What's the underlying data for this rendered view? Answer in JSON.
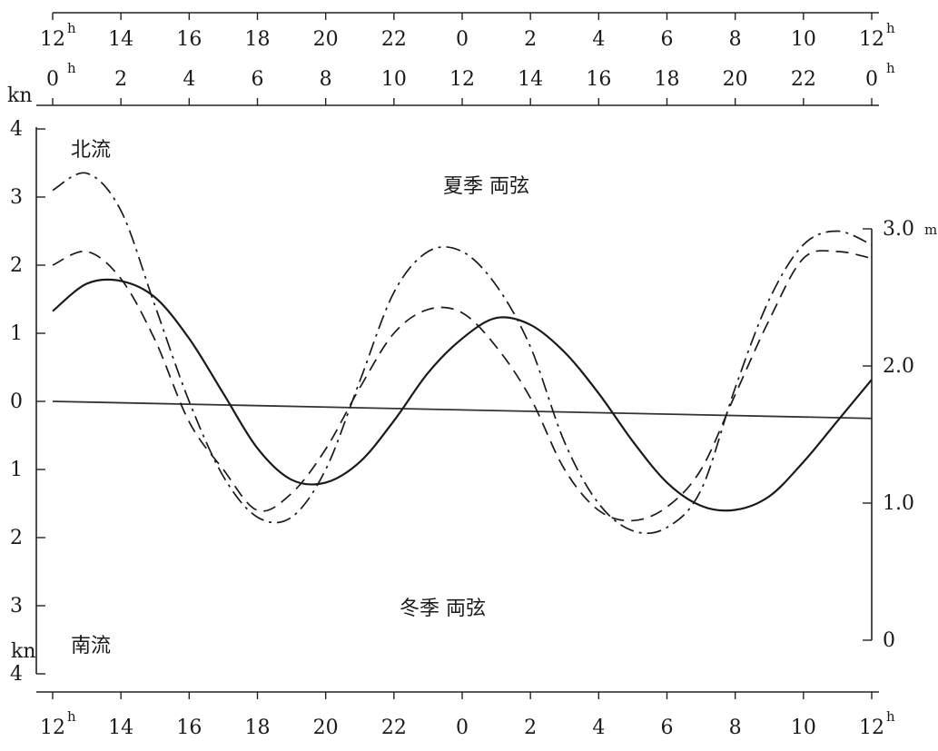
{
  "chart_data": {
    "type": "line",
    "x_label_unit": "h",
    "left_unit": "kn",
    "right_unit": "m",
    "time_axis_top": [
      "12",
      "14",
      "16",
      "18",
      "20",
      "22",
      "0",
      "2",
      "4",
      "6",
      "8",
      "10",
      "12"
    ],
    "time_axis_second": [
      "0",
      "2",
      "4",
      "6",
      "8",
      "10",
      "12",
      "14",
      "16",
      "18",
      "20",
      "22",
      "0"
    ],
    "time_axis_bottom": [
      "12",
      "14",
      "16",
      "18",
      "20",
      "22",
      "0",
      "2",
      "4",
      "6",
      "8",
      "10",
      "12"
    ],
    "left_ticks": [
      "4",
      "3",
      "2",
      "1",
      "0",
      "1",
      "2",
      "3",
      "4"
    ],
    "left_ylim": [
      -4,
      4
    ],
    "right_ticks": [
      "3.0",
      "2.0",
      "1.0",
      "0"
    ],
    "right_ylim": [
      0,
      3.0
    ],
    "annotations": {
      "north_flow": "北流",
      "south_flow": "南流",
      "summer": "夏季 両弦",
      "winter": "冬季 両弦"
    },
    "x": [
      0,
      1,
      2,
      3,
      4,
      5,
      6,
      7,
      8,
      9,
      10,
      11,
      12,
      13,
      14,
      15,
      16,
      17,
      18,
      19,
      20,
      21,
      22,
      23,
      24
    ],
    "series": [
      {
        "style": "solid",
        "axis": "right",
        "values": [
          2.4,
          2.6,
          2.62,
          2.5,
          2.2,
          1.8,
          1.4,
          1.17,
          1.15,
          1.3,
          1.6,
          1.95,
          2.2,
          2.35,
          2.3,
          2.1,
          1.8,
          1.45,
          1.15,
          0.98,
          0.95,
          1.05,
          1.3,
          1.6,
          1.9
        ]
      },
      {
        "style": "dashed",
        "axis": "left",
        "values": [
          2.0,
          2.2,
          1.8,
          0.9,
          -0.3,
          -1.0,
          -1.6,
          -1.35,
          -0.7,
          0.2,
          1.0,
          1.35,
          1.3,
          0.8,
          0.05,
          -1.0,
          -1.6,
          -1.75,
          -1.55,
          -1.0,
          0.1,
          1.2,
          2.1,
          2.2,
          2.1
        ]
      },
      {
        "style": "dash-dot",
        "axis": "left",
        "values": [
          3.1,
          3.35,
          2.8,
          1.4,
          0.0,
          -1.1,
          -1.7,
          -1.7,
          -1.0,
          0.3,
          1.6,
          2.2,
          2.2,
          1.7,
          0.8,
          -0.6,
          -1.5,
          -1.9,
          -1.85,
          -1.3,
          0.2,
          1.5,
          2.3,
          2.5,
          2.3
        ]
      }
    ],
    "reference_line": {
      "style": "solid",
      "axis": "left",
      "values": [
        0.0,
        -0.25
      ]
    }
  }
}
